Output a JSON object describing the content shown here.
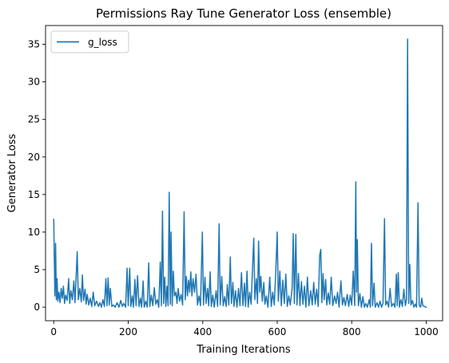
{
  "chart_data": {
    "type": "line",
    "title": "Permissions Ray Tune Generator Loss (ensemble)",
    "xlabel": "Training Iterations",
    "ylabel": "Generator Loss",
    "xlim": [
      -22,
      1044
    ],
    "ylim": [
      -1.8,
      37.5
    ],
    "xticks": [
      0,
      200,
      400,
      600,
      800,
      1000
    ],
    "yticks": [
      0,
      5,
      10,
      15,
      20,
      25,
      30,
      35
    ],
    "grid": false,
    "legend_position": "top-left",
    "series": [
      {
        "name": "g_loss",
        "color": "#1f77b4",
        "points": [
          [
            0,
            11.7
          ],
          [
            3,
            1.5
          ],
          [
            5,
            8.5
          ],
          [
            7,
            1.0
          ],
          [
            9,
            3.8
          ],
          [
            11,
            0.8
          ],
          [
            14,
            2.0
          ],
          [
            17,
            0.6
          ],
          [
            20,
            2.5
          ],
          [
            23,
            1.2
          ],
          [
            26,
            2.8
          ],
          [
            29,
            0.5
          ],
          [
            32,
            1.6
          ],
          [
            36,
            0.9
          ],
          [
            40,
            3.8
          ],
          [
            43,
            0.5
          ],
          [
            46,
            2.2
          ],
          [
            50,
            1.0
          ],
          [
            54,
            3.5
          ],
          [
            57,
            0.6
          ],
          [
            60,
            3.9
          ],
          [
            63,
            7.4
          ],
          [
            66,
            1.0
          ],
          [
            70,
            2.5
          ],
          [
            74,
            0.7
          ],
          [
            77,
            4.3
          ],
          [
            80,
            0.9
          ],
          [
            84,
            2.4
          ],
          [
            87,
            0.4
          ],
          [
            90,
            1.7
          ],
          [
            94,
            0.3
          ],
          [
            98,
            1.2
          ],
          [
            102,
            0.1
          ],
          [
            106,
            2.0
          ],
          [
            110,
            0.2
          ],
          [
            115,
            0.8
          ],
          [
            120,
            0.1
          ],
          [
            124,
            0.6
          ],
          [
            128,
            0.0
          ],
          [
            132,
            1.0
          ],
          [
            136,
            0.1
          ],
          [
            140,
            3.8
          ],
          [
            143,
            0.2
          ],
          [
            146,
            3.9
          ],
          [
            149,
            0.3
          ],
          [
            152,
            2.5
          ],
          [
            156,
            0.1
          ],
          [
            160,
            0.3
          ],
          [
            165,
            0.0
          ],
          [
            170,
            0.6
          ],
          [
            175,
            0.0
          ],
          [
            180,
            0.9
          ],
          [
            184,
            0.1
          ],
          [
            188,
            0.5
          ],
          [
            193,
            0.0
          ],
          [
            197,
            5.2
          ],
          [
            200,
            0.2
          ],
          [
            204,
            5.2
          ],
          [
            207,
            0.1
          ],
          [
            211,
            1.5
          ],
          [
            214,
            0.0
          ],
          [
            218,
            3.7
          ],
          [
            221,
            0.2
          ],
          [
            225,
            4.2
          ],
          [
            229,
            0.1
          ],
          [
            233,
            1.2
          ],
          [
            236,
            0.0
          ],
          [
            240,
            3.5
          ],
          [
            243,
            0.0
          ],
          [
            247,
            0.8
          ],
          [
            251,
            0.0
          ],
          [
            255,
            5.9
          ],
          [
            258,
            0.1
          ],
          [
            262,
            1.6
          ],
          [
            266,
            0.2
          ],
          [
            270,
            2.6
          ],
          [
            274,
            0.4
          ],
          [
            278,
            1.0
          ],
          [
            282,
            0.0
          ],
          [
            286,
            6.0
          ],
          [
            289,
            0.2
          ],
          [
            292,
            12.8
          ],
          [
            295,
            0.5
          ],
          [
            298,
            4.0
          ],
          [
            301,
            0.1
          ],
          [
            304,
            2.8
          ],
          [
            307,
            0.2
          ],
          [
            310,
            15.3
          ],
          [
            313,
            0.4
          ],
          [
            315,
            10.0
          ],
          [
            318,
            0.2
          ],
          [
            321,
            4.8
          ],
          [
            324,
            1.5
          ],
          [
            328,
            2.0
          ],
          [
            331,
            0.5
          ],
          [
            334,
            2.5
          ],
          [
            338,
            0.8
          ],
          [
            342,
            1.7
          ],
          [
            346,
            0.3
          ],
          [
            350,
            12.7
          ],
          [
            353,
            1.0
          ],
          [
            356,
            4.1
          ],
          [
            359,
            1.5
          ],
          [
            362,
            3.6
          ],
          [
            365,
            2.0
          ],
          [
            368,
            4.7
          ],
          [
            371,
            1.5
          ],
          [
            374,
            3.8
          ],
          [
            378,
            2.0
          ],
          [
            382,
            4.4
          ],
          [
            386,
            0.3
          ],
          [
            390,
            1.5
          ],
          [
            394,
            0.2
          ],
          [
            399,
            10.0
          ],
          [
            402,
            0.3
          ],
          [
            406,
            4.0
          ],
          [
            409,
            0.5
          ],
          [
            413,
            2.5
          ],
          [
            416,
            0.2
          ],
          [
            420,
            4.7
          ],
          [
            423,
            0.1
          ],
          [
            427,
            1.6
          ],
          [
            431,
            0.0
          ],
          [
            436,
            2.2
          ],
          [
            440,
            0.1
          ],
          [
            444,
            11.1
          ],
          [
            447,
            0.3
          ],
          [
            451,
            4.1
          ],
          [
            455,
            0.2
          ],
          [
            459,
            1.4
          ],
          [
            463,
            0.1
          ],
          [
            466,
            3.0
          ],
          [
            470,
            0.3
          ],
          [
            474,
            6.7
          ],
          [
            477,
            0.5
          ],
          [
            481,
            3.3
          ],
          [
            484,
            0.1
          ],
          [
            488,
            2.2
          ],
          [
            492,
            0.0
          ],
          [
            496,
            2.5
          ],
          [
            500,
            0.2
          ],
          [
            504,
            4.6
          ],
          [
            508,
            0.2
          ],
          [
            512,
            3.2
          ],
          [
            515,
            0.1
          ],
          [
            519,
            4.8
          ],
          [
            522,
            0.0
          ],
          [
            526,
            2.0
          ],
          [
            530,
            0.4
          ],
          [
            534,
            5.5
          ],
          [
            537,
            9.2
          ],
          [
            540,
            1.0
          ],
          [
            544,
            3.8
          ],
          [
            547,
            0.5
          ],
          [
            550,
            8.8
          ],
          [
            553,
            2.0
          ],
          [
            556,
            4.1
          ],
          [
            560,
            0.8
          ],
          [
            564,
            3.3
          ],
          [
            567,
            0.4
          ],
          [
            571,
            1.5
          ],
          [
            575,
            0.0
          ],
          [
            580,
            4.0
          ],
          [
            584,
            0.1
          ],
          [
            588,
            2.0
          ],
          [
            592,
            0.3
          ],
          [
            596,
            4.6
          ],
          [
            600,
            10.0
          ],
          [
            603,
            0.8
          ],
          [
            607,
            4.8
          ],
          [
            611,
            0.2
          ],
          [
            615,
            3.6
          ],
          [
            619,
            0.5
          ],
          [
            623,
            4.4
          ],
          [
            627,
            0.1
          ],
          [
            631,
            1.5
          ],
          [
            635,
            0.3
          ],
          [
            640,
            2.5
          ],
          [
            643,
            9.8
          ],
          [
            646,
            0.5
          ],
          [
            650,
            9.7
          ],
          [
            653,
            0.3
          ],
          [
            657,
            4.5
          ],
          [
            661,
            0.2
          ],
          [
            665,
            3.4
          ],
          [
            669,
            0.4
          ],
          [
            673,
            2.8
          ],
          [
            677,
            0.0
          ],
          [
            681,
            4.0
          ],
          [
            685,
            0.2
          ],
          [
            690,
            2.2
          ],
          [
            694,
            0.3
          ],
          [
            698,
            3.3
          ],
          [
            702,
            0.4
          ],
          [
            706,
            2.4
          ],
          [
            710,
            0.1
          ],
          [
            714,
            6.9
          ],
          [
            717,
            7.7
          ],
          [
            720,
            0.6
          ],
          [
            723,
            4.5
          ],
          [
            726,
            1.0
          ],
          [
            730,
            3.7
          ],
          [
            733,
            0.3
          ],
          [
            737,
            1.9
          ],
          [
            741,
            0.4
          ],
          [
            745,
            4.0
          ],
          [
            749,
            0.2
          ],
          [
            754,
            1.5
          ],
          [
            758,
            0.5
          ],
          [
            762,
            2.0
          ],
          [
            766,
            0.0
          ],
          [
            771,
            3.5
          ],
          [
            775,
            0.3
          ],
          [
            779,
            1.3
          ],
          [
            783,
            0.2
          ],
          [
            788,
            1.7
          ],
          [
            792,
            0.1
          ],
          [
            796,
            1.6
          ],
          [
            800,
            0.3
          ],
          [
            804,
            4.8
          ],
          [
            808,
            0.2
          ],
          [
            811,
            16.7
          ],
          [
            813,
            2.0
          ],
          [
            815,
            9.0
          ],
          [
            818,
            0.2
          ],
          [
            822,
            1.8
          ],
          [
            826,
            0.0
          ],
          [
            830,
            1.4
          ],
          [
            834,
            0.0
          ],
          [
            838,
            0.5
          ],
          [
            842,
            0.0
          ],
          [
            847,
            1.0
          ],
          [
            850,
            0.0
          ],
          [
            853,
            8.5
          ],
          [
            856,
            0.2
          ],
          [
            860,
            3.2
          ],
          [
            863,
            0.0
          ],
          [
            868,
            0.6
          ],
          [
            872,
            0.0
          ],
          [
            876,
            0.8
          ],
          [
            880,
            0.0
          ],
          [
            884,
            0.5
          ],
          [
            888,
            11.8
          ],
          [
            891,
            0.3
          ],
          [
            895,
            0.8
          ],
          [
            899,
            0.0
          ],
          [
            903,
            2.5
          ],
          [
            907,
            0.1
          ],
          [
            912,
            0.5
          ],
          [
            916,
            0.0
          ],
          [
            920,
            4.4
          ],
          [
            922,
            0.2
          ],
          [
            925,
            4.6
          ],
          [
            928,
            0.0
          ],
          [
            932,
            1.0
          ],
          [
            936,
            0.1
          ],
          [
            940,
            2.4
          ],
          [
            944,
            0.2
          ],
          [
            947,
            1.0
          ],
          [
            950,
            35.7
          ],
          [
            953,
            0.5
          ],
          [
            956,
            5.7
          ],
          [
            959,
            0.3
          ],
          [
            963,
            0.9
          ],
          [
            967,
            0.0
          ],
          [
            971,
            0.4
          ],
          [
            974,
            0.0
          ],
          [
            978,
            13.9
          ],
          [
            981,
            0.3
          ],
          [
            985,
            0.0
          ],
          [
            988,
            1.2
          ],
          [
            991,
            0.2
          ],
          [
            995,
            0.1
          ],
          [
            1000,
            0.0
          ]
        ]
      }
    ]
  }
}
